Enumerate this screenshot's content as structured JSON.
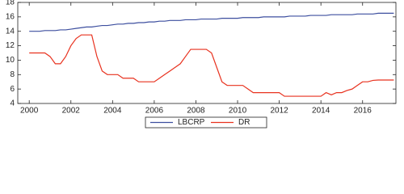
{
  "chart_data": {
    "type": "line",
    "x": [
      2000,
      2000.25,
      2000.5,
      2000.75,
      2001,
      2001.25,
      2001.5,
      2001.75,
      2002,
      2002.25,
      2002.5,
      2002.75,
      2003,
      2003.25,
      2003.5,
      2003.75,
      2004,
      2004.25,
      2004.5,
      2004.75,
      2005,
      2005.25,
      2005.5,
      2005.75,
      2006,
      2006.25,
      2006.5,
      2006.75,
      2007,
      2007.25,
      2007.5,
      2007.75,
      2008,
      2008.25,
      2008.5,
      2008.75,
      2009,
      2009.25,
      2009.5,
      2009.75,
      2010,
      2010.25,
      2010.5,
      2010.75,
      2011,
      2011.25,
      2011.5,
      2011.75,
      2012,
      2012.25,
      2012.5,
      2012.75,
      2013,
      2013.25,
      2013.5,
      2013.75,
      2014,
      2014.25,
      2014.5,
      2014.75,
      2015,
      2015.25,
      2015.5,
      2015.75,
      2016,
      2016.25,
      2016.5,
      2016.75,
      2017,
      2017.25,
      2017.5
    ],
    "series": [
      {
        "name": "LBCRP",
        "color": "#3d4f9f",
        "values": [
          14.0,
          14.0,
          14.0,
          14.1,
          14.1,
          14.1,
          14.2,
          14.2,
          14.3,
          14.4,
          14.5,
          14.6,
          14.6,
          14.7,
          14.8,
          14.8,
          14.9,
          15.0,
          15.0,
          15.1,
          15.1,
          15.2,
          15.2,
          15.3,
          15.3,
          15.4,
          15.4,
          15.5,
          15.5,
          15.5,
          15.6,
          15.6,
          15.6,
          15.7,
          15.7,
          15.7,
          15.7,
          15.8,
          15.8,
          15.8,
          15.8,
          15.9,
          15.9,
          15.9,
          15.9,
          16.0,
          16.0,
          16.0,
          16.0,
          16.0,
          16.1,
          16.1,
          16.1,
          16.1,
          16.2,
          16.2,
          16.2,
          16.2,
          16.3,
          16.3,
          16.3,
          16.3,
          16.3,
          16.4,
          16.4,
          16.4,
          16.4,
          16.5,
          16.5,
          16.5,
          16.5
        ]
      },
      {
        "name": "DR",
        "color": "#e8321f",
        "values": [
          11,
          11,
          11,
          11,
          10.5,
          9.5,
          9.5,
          10.5,
          12,
          13,
          13.5,
          13.5,
          13.5,
          10.5,
          8.5,
          8,
          8,
          8,
          7.5,
          7.5,
          7.5,
          7,
          7,
          7,
          7,
          7.5,
          8,
          8.5,
          9,
          9.5,
          10.5,
          11.5,
          11.5,
          11.5,
          11.5,
          11,
          9,
          7,
          6.5,
          6.5,
          6.5,
          6.5,
          6,
          5.5,
          5.5,
          5.5,
          5.5,
          5.5,
          5.5,
          5,
          5,
          5,
          5,
          5,
          5,
          5,
          5,
          5.5,
          5.2,
          5.5,
          5.5,
          5.8,
          6,
          6.5,
          7,
          7,
          7.2,
          7.25,
          7.25,
          7.25,
          7.25
        ]
      }
    ],
    "xlim": [
      1999.45,
      2017.6
    ],
    "xticks": [
      2000,
      2002,
      2004,
      2006,
      2008,
      2010,
      2012,
      2014,
      2016
    ],
    "ylim": [
      4,
      18
    ],
    "yticks": [
      4,
      6,
      8,
      10,
      12,
      14,
      16,
      18
    ]
  }
}
